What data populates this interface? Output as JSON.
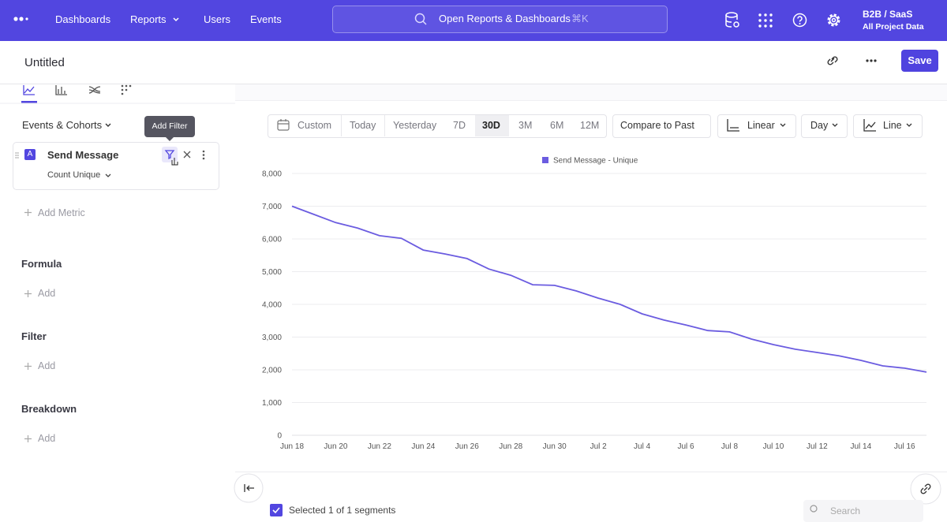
{
  "ui": {
    "nav": {
      "items": [
        "Dashboards",
        "Reports",
        "Users",
        "Events"
      ],
      "search": "Open Reports & Dashboards",
      "shortcut": "⌘K",
      "project": "B2B / SaaS",
      "project_scope": "All Project Data"
    },
    "header": {
      "title": "Untitled",
      "save": "Save"
    },
    "sidebar": {
      "events_heading": "Events & Cohorts",
      "tooltip": "Add Filter",
      "metric": {
        "letter": "A",
        "event": "Send Message",
        "measure": "Count Unique"
      },
      "add_metric": "Add Metric",
      "sections": [
        {
          "title": "Formula",
          "action": "Add"
        },
        {
          "title": "Filter",
          "action": "Add"
        },
        {
          "title": "Breakdown",
          "action": "Add"
        }
      ]
    },
    "toolbar": {
      "ranges": [
        "Custom",
        "Today",
        "Yesterday",
        "7D",
        "30D",
        "3M",
        "6M",
        "12M"
      ],
      "selected_range": 4,
      "compare": "Compare to Past",
      "scale": "Linear",
      "interval": "Day",
      "chart_kind": "Line"
    },
    "footer": {
      "selection": "Selected 1 of 1 segments",
      "search_placeholder": "Search"
    }
  },
  "chart_data": {
    "type": "line",
    "legend": "top",
    "categories": [
      "Jun 18",
      null,
      "Jun 20",
      null,
      "Jun 22",
      null,
      "Jun 24",
      null,
      "Jun 26",
      null,
      "Jun 28",
      null,
      "Jun 30",
      null,
      "Jul 2",
      null,
      "Jul 4",
      null,
      "Jul 6",
      null,
      "Jul 8",
      null,
      "Jul 10",
      null,
      "Jul 12",
      null,
      "Jul 14",
      null,
      "Jul 16",
      null
    ],
    "series": [
      {
        "name": "Send Message - Unique",
        "color": "#6b5ce0",
        "values": [
          7000,
          6750,
          6500,
          6330,
          6100,
          6020,
          5660,
          5540,
          5400,
          5080,
          4890,
          4600,
          4580,
          4410,
          4190,
          4000,
          3710,
          3520,
          3370,
          3200,
          3160,
          2940,
          2770,
          2630,
          2530,
          2430,
          2290,
          2120,
          2050,
          1930
        ]
      }
    ],
    "ylim": [
      0,
      8000
    ],
    "yticks": [
      0,
      {
        "value": 1000,
        "label": "1,000"
      },
      {
        "value": 2000,
        "label": "2,000"
      },
      {
        "value": 3000,
        "label": "3,000"
      },
      {
        "value": 4000,
        "label": "4,000"
      },
      {
        "value": 5000,
        "label": "5,000"
      },
      {
        "value": 6000,
        "label": "6,000"
      },
      {
        "value": 7000,
        "label": "7,000"
      },
      {
        "value": 8000,
        "label": "8,000"
      }
    ],
    "grid": true
  }
}
